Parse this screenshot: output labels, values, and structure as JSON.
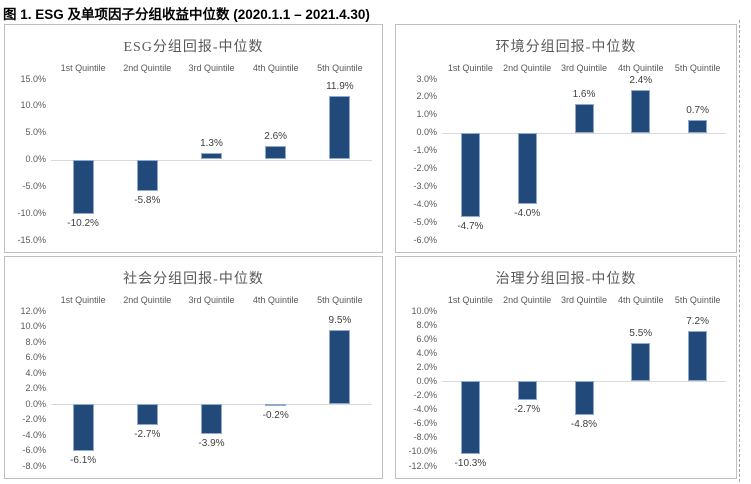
{
  "figure_title": "图 1. ESG 及单项因子分组收益中位数 (2020.1.1 – 2021.4.30)",
  "colors": {
    "bar_fill": "#21497A",
    "bar_border": "#8FAACC",
    "axis_text": "#595959",
    "data_label_text": "#3F3F3F",
    "chart_title_text": "#595959",
    "zero_line": "#D9D9D9",
    "panel_border": "#BFBFBF",
    "page_margin_guide": "#A6A6A6",
    "figure_title_text": "#000000"
  },
  "chart_data": [
    {
      "type": "bar",
      "title": "ESG分组回报-中位数",
      "categories": [
        "1st Quintile",
        "2nd Quintile",
        "3rd Quintile",
        "4th Quintile",
        "5th Quintile"
      ],
      "values": [
        -10.2,
        -5.8,
        1.3,
        2.6,
        11.9
      ],
      "data_labels": [
        "-10.2%",
        "-5.8%",
        "1.3%",
        "2.6%",
        "11.9%"
      ],
      "yticks": [
        "15.0%",
        "10.0%",
        "5.0%",
        "0.0%",
        "-5.0%",
        "-10.0%",
        "-15.0%"
      ],
      "ylim": [
        -15,
        15
      ],
      "xlabel": "",
      "ylabel": "",
      "grid": "zero-line-only",
      "legend": "none"
    },
    {
      "type": "bar",
      "title": "环境分组回报-中位数",
      "categories": [
        "1st Quintile",
        "2nd Quintile",
        "3rd Quintile",
        "4th Quintile",
        "5th Quintile"
      ],
      "values": [
        -4.7,
        -4.0,
        1.6,
        2.4,
        0.7
      ],
      "data_labels": [
        "-4.7%",
        "-4.0%",
        "1.6%",
        "2.4%",
        "0.7%"
      ],
      "yticks": [
        "3.0%",
        "2.0%",
        "1.0%",
        "0.0%",
        "-1.0%",
        "-2.0%",
        "-3.0%",
        "-4.0%",
        "-5.0%",
        "-6.0%"
      ],
      "ylim": [
        -6,
        3
      ],
      "xlabel": "",
      "ylabel": "",
      "grid": "zero-line-only",
      "legend": "none"
    },
    {
      "type": "bar",
      "title": "社会分组回报-中位数",
      "categories": [
        "1st Quintile",
        "2nd Quintile",
        "3rd Quintile",
        "4th Quintile",
        "5th Quintile"
      ],
      "values": [
        -6.1,
        -2.7,
        -3.9,
        -0.2,
        9.5
      ],
      "data_labels": [
        "-6.1%",
        "-2.7%",
        "-3.9%",
        "-0.2%",
        "9.5%"
      ],
      "yticks": [
        "12.0%",
        "10.0%",
        "8.0%",
        "6.0%",
        "4.0%",
        "2.0%",
        "0.0%",
        "-2.0%",
        "-4.0%",
        "-6.0%",
        "-8.0%"
      ],
      "ylim": [
        -8,
        12
      ],
      "xlabel": "",
      "ylabel": "",
      "grid": "zero-line-only",
      "legend": "none"
    },
    {
      "type": "bar",
      "title": "治理分组回报-中位数",
      "categories": [
        "1st Quintile",
        "2nd Quintile",
        "3rd Quintile",
        "4th Quintile",
        "5th Quintile"
      ],
      "values": [
        -10.3,
        -2.7,
        -4.8,
        5.5,
        7.2
      ],
      "data_labels": [
        "-10.3%",
        "-2.7%",
        "-4.8%",
        "5.5%",
        "7.2%"
      ],
      "yticks": [
        "10.0%",
        "8.0%",
        "6.0%",
        "4.0%",
        "2.0%",
        "0.0%",
        "-2.0%",
        "-4.0%",
        "-6.0%",
        "-8.0%",
        "-10.0%",
        "-12.0%"
      ],
      "ylim": [
        -12,
        10
      ],
      "xlabel": "",
      "ylabel": "",
      "grid": "zero-line-only",
      "legend": "none"
    }
  ]
}
